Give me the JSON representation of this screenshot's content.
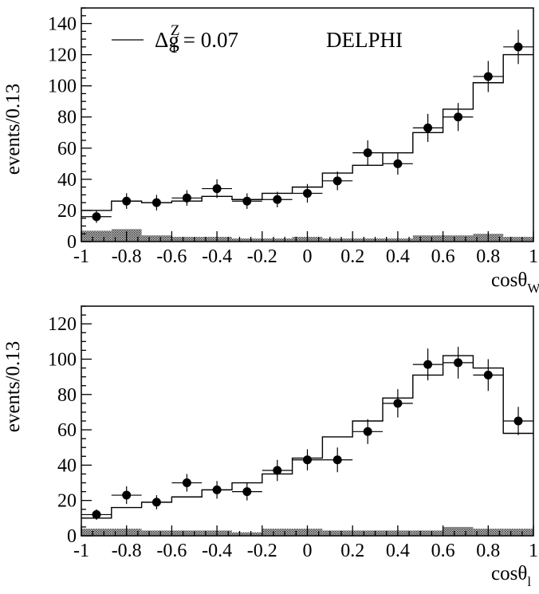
{
  "experiment_label": "DELPHI",
  "legend": {
    "symbol": "Δg",
    "superscript": "Z",
    "subscript": "1",
    "value_text": " = 0.07"
  },
  "chart_data": [
    {
      "type": "histogram-with-points",
      "ylabel": "events/0.13",
      "xlabel_base": "cosθ",
      "xlabel_sub": "W",
      "xlim": [
        -1,
        1
      ],
      "ylim": [
        0,
        150
      ],
      "xticks": [
        -1,
        -0.8,
        -0.6,
        -0.4,
        -0.2,
        0,
        0.2,
        0.4,
        0.6,
        0.8,
        1
      ],
      "xtick_labels": [
        "-1",
        "-0.8",
        "-0.6",
        "-0.4",
        "-0.2",
        "0",
        "0.2",
        "0.4",
        "0.6",
        "0.8",
        "1"
      ],
      "yticks": [
        0,
        20,
        40,
        60,
        80,
        100,
        120,
        140
      ],
      "ytick_labels": [
        "0",
        "20",
        "40",
        "60",
        "80",
        "100",
        "120",
        "140"
      ],
      "bin_centers": [
        -0.933,
        -0.8,
        -0.667,
        -0.533,
        -0.4,
        -0.267,
        -0.133,
        0.0,
        0.133,
        0.267,
        0.4,
        0.533,
        0.667,
        0.8,
        0.933
      ],
      "data_points": [
        16,
        26,
        25,
        28,
        34,
        26,
        27,
        31,
        39,
        57,
        50,
        73,
        80,
        106,
        125
      ],
      "errors": [
        4,
        5,
        5,
        5,
        6,
        5,
        5,
        6,
        6,
        8,
        7,
        9,
        9,
        10,
        11
      ],
      "histogram": [
        20,
        26,
        25,
        26,
        29,
        27,
        31,
        35,
        44,
        49,
        57,
        70,
        85,
        102,
        120
      ],
      "background": [
        7,
        8,
        4,
        3,
        3,
        2,
        2,
        3,
        2,
        2,
        2,
        4,
        4,
        5,
        3
      ]
    },
    {
      "type": "histogram-with-points",
      "ylabel": "events/0.13",
      "xlabel_base": "cosθ",
      "xlabel_sub": "l",
      "xlim": [
        -1,
        1
      ],
      "ylim": [
        0,
        130
      ],
      "xticks": [
        -1,
        -0.8,
        -0.6,
        -0.4,
        -0.2,
        0,
        0.2,
        0.4,
        0.6,
        0.8,
        1
      ],
      "xtick_labels": [
        "-1",
        "-0.8",
        "-0.6",
        "-0.4",
        "-0.2",
        "0",
        "0.2",
        "0.4",
        "0.6",
        "0.8",
        "1"
      ],
      "yticks": [
        0,
        20,
        40,
        60,
        80,
        100,
        120
      ],
      "ytick_labels": [
        "0",
        "20",
        "40",
        "60",
        "80",
        "100",
        "120"
      ],
      "bin_centers": [
        -0.933,
        -0.8,
        -0.667,
        -0.533,
        -0.4,
        -0.267,
        -0.133,
        0.0,
        0.133,
        0.267,
        0.4,
        0.533,
        0.667,
        0.8,
        0.933
      ],
      "data_points": [
        12,
        23,
        19,
        30,
        26,
        25,
        37,
        43,
        43,
        59,
        75,
        97,
        98,
        91,
        65
      ],
      "errors": [
        3,
        5,
        4,
        5,
        5,
        5,
        6,
        6,
        7,
        7,
        8,
        9,
        9,
        9,
        8
      ],
      "histogram": [
        10,
        16,
        19,
        22,
        26,
        30,
        35,
        44,
        56,
        65,
        78,
        91,
        102,
        95,
        58
      ],
      "background": [
        4,
        4,
        3,
        3,
        3,
        2,
        4,
        4,
        3,
        3,
        3,
        3,
        5,
        4,
        4
      ]
    }
  ]
}
